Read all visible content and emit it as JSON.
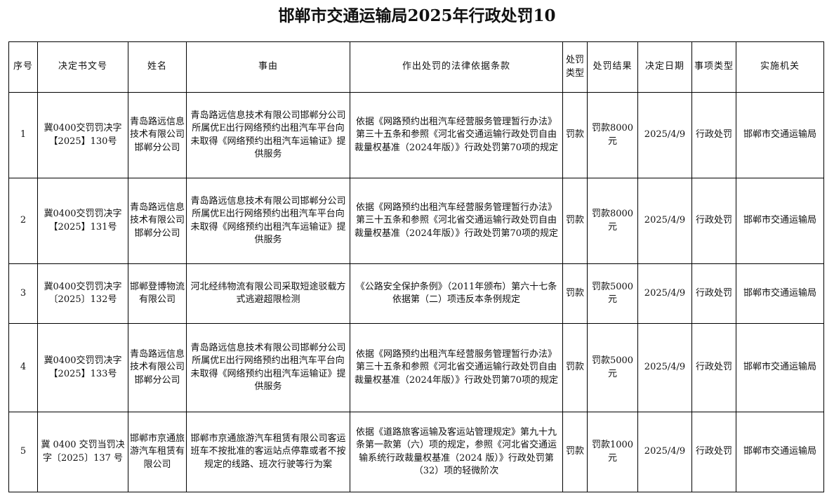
{
  "title": "邯郸市交通运输局2025年行政处罚10",
  "headers": [
    "序号",
    "决定书文号",
    "姓名",
    "事由",
    "作出处罚的法律依据条款",
    "处罚类型",
    "处罚结果",
    "决定日期",
    "事项类型",
    "实施机关"
  ],
  "rows": [
    {
      "no": "1",
      "doc": "冀0400交罚罚决字【2025】130号",
      "name": "青岛路远信息技术有限公司邯郸分公司",
      "reason": "青岛路远信息技术有限公司邯郸分公司所属优E出行网络预约出租汽车平台向未取得《网络预约出租汽车运输证》提供服务",
      "basis": "依据《网路预约出租汽车经营服务管理暂行办法》第三十五条和参照《河北省交通运输行政处罚自由裁量权基准（2024年版）》行政处罚第70项的规定",
      "type": "罚款",
      "result": "罚款8000元",
      "date": "2025/4/9",
      "category": "行政处罚",
      "agency": "邯郸市交通运输局"
    },
    {
      "no": "2",
      "doc": "冀0400交罚罚决字【2025】131号",
      "name": "青岛路远信息技术有限公司邯郸分公司",
      "reason": "青岛路远信息技术有限公司邯郸分公司所属优E出行网络预约出租汽车平台向未取得《网络预约出租汽车运输证》提供服务",
      "basis": "依据《网路预约出租汽车经营服务管理暂行办法》第三十五条和参照《河北省交通运输行政处罚自由裁量权基准（2024年版）》行政处罚第70项的规定",
      "type": "罚款",
      "result": "罚款8000元",
      "date": "2025/4/9",
      "category": "行政处罚",
      "agency": "邯郸市交通运输局"
    },
    {
      "no": "3",
      "doc": "冀0400交罚罚决字〔2025〕132号",
      "name": "邯郸登博物流有限公司",
      "reason": "河北经纬物流有限公司采取短途驳载方式逃避超限检测",
      "basis": "《公路安全保护条例》（2011年颁布）第六十七条依据第（二）项违反本条例规定",
      "type": "罚款",
      "result": "罚款5000元",
      "date": "2025/4/9",
      "category": "行政处罚",
      "agency": "邯郸市交通运输局"
    },
    {
      "no": "4",
      "doc": "冀0400交罚罚决字【2025】133号",
      "name": "青岛路远信息技术有限公司邯郸分公司",
      "reason": "青岛路远信息技术有限公司邯郸分公司所属优E出行网络预约出租汽车平台向未取得《网络预约出租汽车运输证》提供服务",
      "basis": "依据《网路预约出租汽车经营服务管理暂行办法》第三十五条和参照《河北省交通运输行政处罚自由裁量权基准（2024年版）》行政处罚第70项的规定",
      "type": "罚款",
      "result": "罚款5000元",
      "date": "2025/4/9",
      "category": "行政处罚",
      "agency": "邯郸市交通运输局"
    },
    {
      "no": "5",
      "doc": "冀 0400 交罚当罚决字〔2025〕137 号",
      "name": "邯郸市京通旅游汽车租赁有限公司",
      "reason": "邯郸市京通旅游汽车租赁有限公司客运班车不按批准的客运站点停靠或者不按规定的线路、班次行驶等行为案",
      "basis": "依据《道路旅客运输及客运站管理规定》第九十九条第一款第（六）项的规定，参照《河北省交通运输系统行政裁量权基准（2024 版）》行政处罚第（32）项的轻微阶次",
      "type": "罚款",
      "result": "罚款1000元",
      "date": "2025/4/9",
      "category": "行政处罚",
      "agency": "邯郸市交通运输局"
    }
  ]
}
